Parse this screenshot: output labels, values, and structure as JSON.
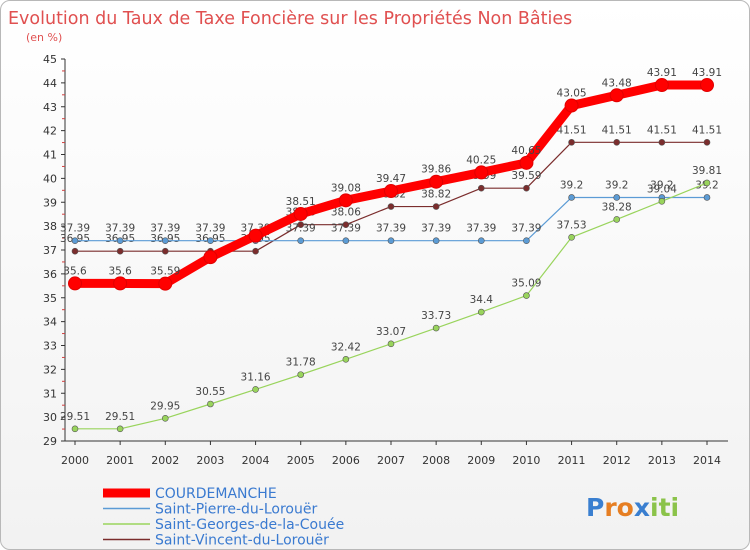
{
  "chart_data": {
    "type": "line",
    "title": "Evolution du Taux de Taxe Foncière sur les Propriétés Non Bâties",
    "ylabel": "(en %)",
    "xlabel": "",
    "x": [
      "2000",
      "2001",
      "2002",
      "2003",
      "2004",
      "2005",
      "2006",
      "2007",
      "2008",
      "2009",
      "2010",
      "2011",
      "2012",
      "2013",
      "2014"
    ],
    "ylim": [
      29,
      45
    ],
    "yticks": [
      29,
      30,
      31,
      32,
      33,
      34,
      35,
      36,
      37,
      38,
      39,
      40,
      41,
      42,
      43,
      44,
      45
    ],
    "grid": false,
    "legend_position": "bottom-left",
    "series": [
      {
        "name": "COURDEMANCHE",
        "color": "#ff0000",
        "labels": [
          "35.6",
          "35.6",
          "35.59",
          "",
          "",
          "38.51",
          "39.08",
          "39.47",
          "39.86",
          "40.25",
          "40.65",
          "43.05",
          "43.48",
          "43.91",
          "43.91"
        ],
        "values": [
          35.6,
          35.6,
          35.59,
          36.7,
          37.6,
          38.51,
          39.08,
          39.47,
          39.86,
          40.25,
          40.65,
          43.05,
          43.48,
          43.91,
          43.91
        ]
      },
      {
        "name": "Saint-Pierre-du-Lorouër",
        "color": "#5b9bd5",
        "labels": [
          "37.39",
          "37.39",
          "37.39",
          "37.39",
          "37.39",
          "37.39",
          "37.39",
          "37.39",
          "37.39",
          "37.39",
          "37.39",
          "39.2",
          "39.2",
          "39.2",
          "39.2"
        ],
        "values": [
          37.39,
          37.39,
          37.39,
          37.39,
          37.39,
          37.39,
          37.39,
          37.39,
          37.39,
          37.39,
          37.39,
          39.2,
          39.2,
          39.2,
          39.2
        ]
      },
      {
        "name": "Saint-Georges-de-la-Couée",
        "color": "#99d45c",
        "labels": [
          "29.51",
          "29.51",
          "29.95",
          "30.55",
          "31.16",
          "31.78",
          "32.42",
          "33.07",
          "33.73",
          "34.4",
          "35.09",
          "37.53",
          "38.28",
          "39.04",
          "39.81"
        ],
        "values": [
          29.51,
          29.51,
          29.95,
          30.55,
          31.16,
          31.78,
          32.42,
          33.07,
          33.73,
          34.4,
          35.09,
          37.53,
          38.28,
          39.04,
          39.81
        ]
      },
      {
        "name": "Saint-Vincent-du-Lorouër",
        "color": "#7b2d2d",
        "labels": [
          "36.95",
          "36.95",
          "36.95",
          "36.95",
          "36.95",
          "38.06",
          "38.06",
          "38.82",
          "38.82",
          "39.59",
          "39.59",
          "41.51",
          "41.51",
          "41.51",
          "41.51"
        ],
        "values": [
          36.95,
          36.95,
          36.95,
          36.95,
          36.95,
          38.06,
          38.06,
          38.82,
          38.82,
          39.59,
          39.59,
          41.51,
          41.51,
          41.51,
          41.51
        ]
      }
    ]
  },
  "logo": {
    "letters": [
      "P",
      "r",
      "o",
      "x",
      "i",
      "t",
      "i"
    ],
    "colors": [
      "#3a7fd0",
      "#e67e22",
      "#e67e22",
      "#3a7fd0",
      "#8bc34a",
      "#8bc34a",
      "#8bc34a"
    ]
  }
}
